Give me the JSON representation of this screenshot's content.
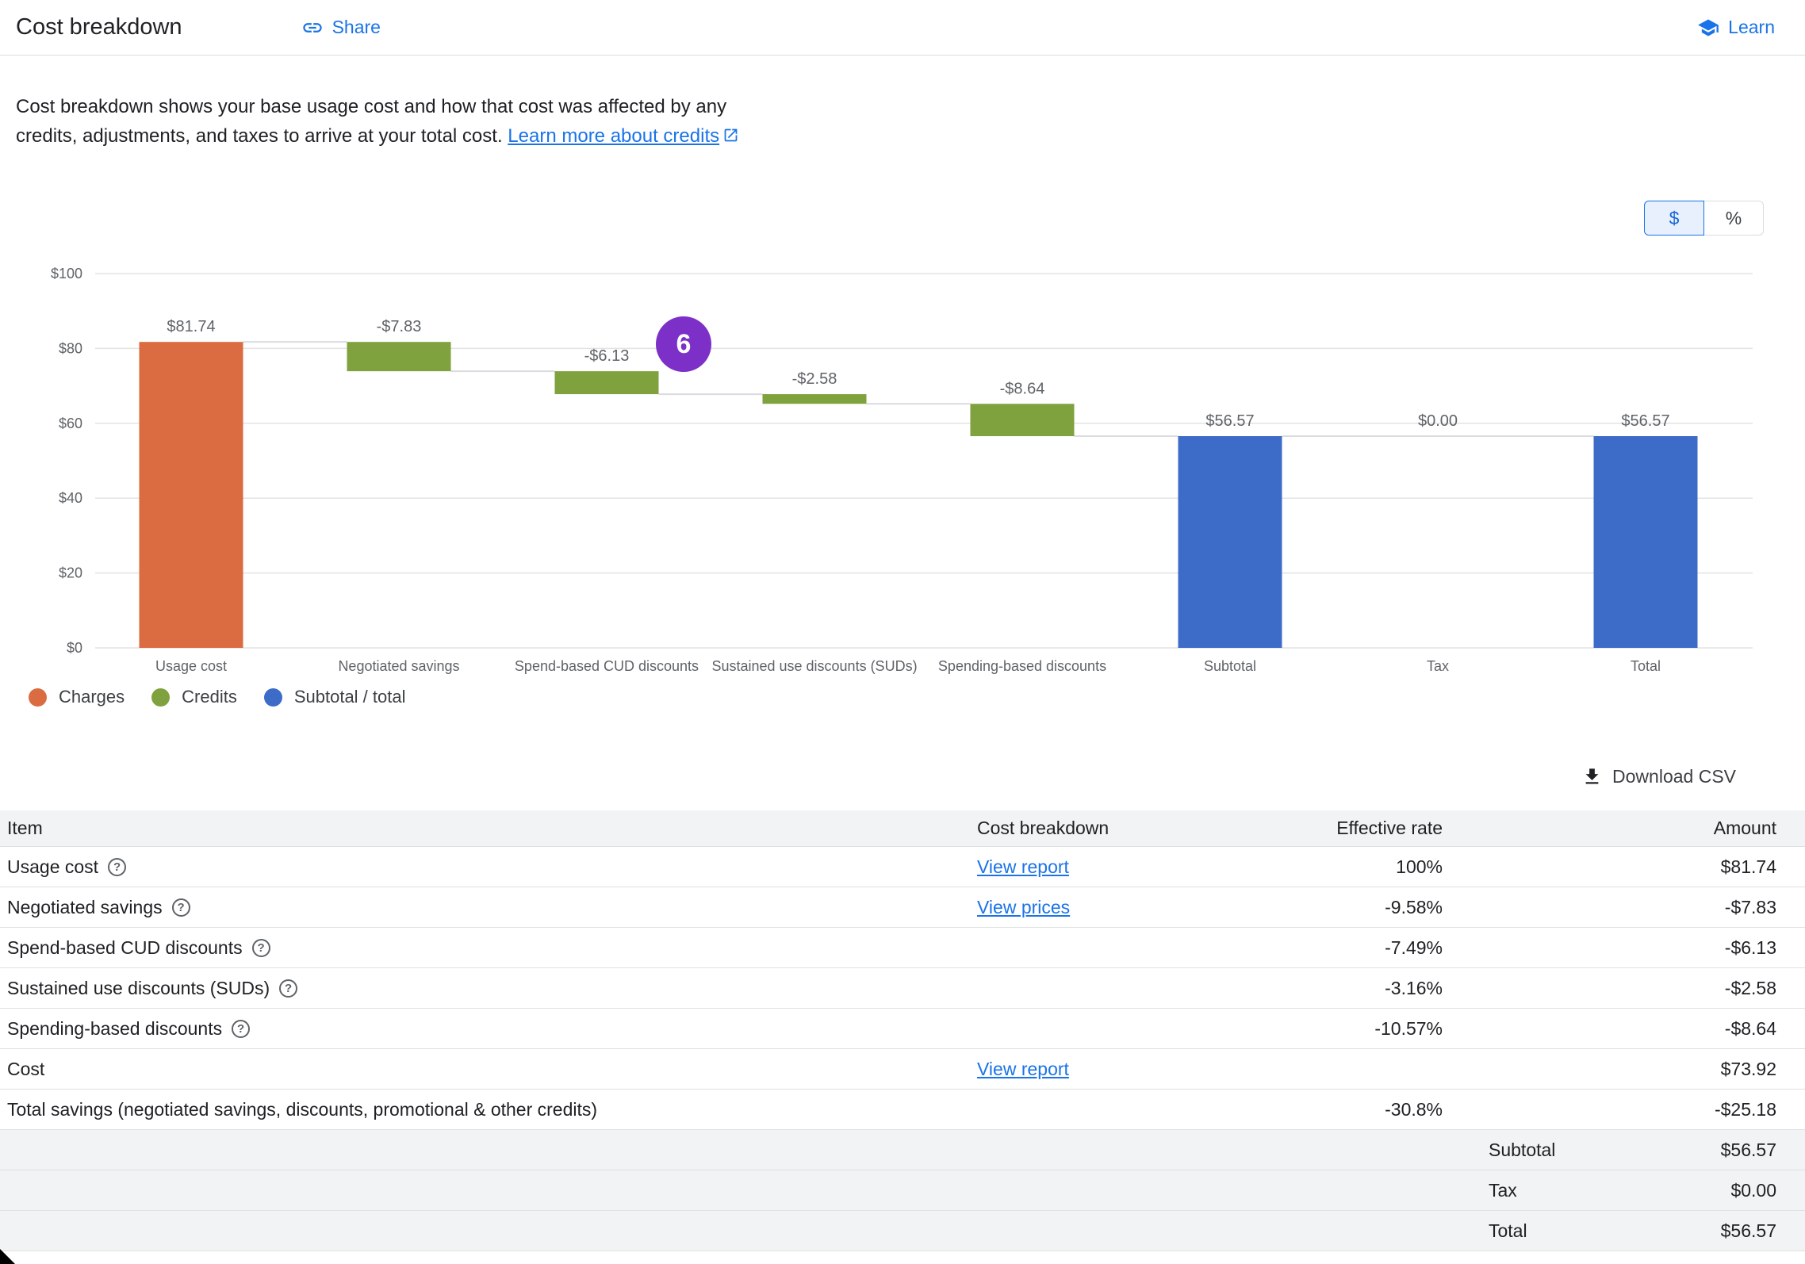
{
  "header": {
    "title": "Cost breakdown",
    "share_label": "Share",
    "learn_label": "Learn"
  },
  "description": {
    "text": "Cost breakdown shows your base usage cost and how that cost was affected by any credits, adjustments, and taxes to arrive at your total cost. ",
    "link_text": "Learn more about credits"
  },
  "unit_toggle": {
    "dollar": "$",
    "percent": "%",
    "selected": "$"
  },
  "step_badge": "6",
  "colors": {
    "link": "#1A73E8",
    "charge": "#DB6B41",
    "credit": "#7FA23E",
    "subtotal_total": "#3D6BC8",
    "badge": "#7C30C7"
  },
  "chart_data": {
    "type": "waterfall",
    "title": "Cost breakdown waterfall",
    "xlabel": "",
    "ylabel": "",
    "ylim": [
      0,
      100
    ],
    "grid": true,
    "yticks": [
      {
        "label": "$0",
        "value": 0
      },
      {
        "label": "$20",
        "value": 20
      },
      {
        "label": "$40",
        "value": 40
      },
      {
        "label": "$60",
        "value": 60
      },
      {
        "label": "$80",
        "value": 80
      },
      {
        "label": "$100",
        "value": 100
      }
    ],
    "bars": [
      {
        "category": "Usage cost",
        "label": "$81.74",
        "start": 0,
        "end": 81.74,
        "type": "charge"
      },
      {
        "category": "Negotiated savings",
        "label": "-$7.83",
        "start": 81.74,
        "end": 73.91,
        "type": "credit"
      },
      {
        "category": "Spend-based CUD discounts",
        "label": "-$6.13",
        "start": 73.91,
        "end": 67.78,
        "type": "credit"
      },
      {
        "category": "Sustained use discounts (SUDs)",
        "label": "-$2.58",
        "start": 67.78,
        "end": 65.2,
        "type": "credit"
      },
      {
        "category": "Spending-based discounts",
        "label": "-$8.64",
        "start": 65.2,
        "end": 56.56,
        "type": "credit"
      },
      {
        "category": "Subtotal",
        "label": "$56.57",
        "start": 0,
        "end": 56.57,
        "type": "subtotal"
      },
      {
        "category": "Tax",
        "label": "$0.00",
        "start": 56.57,
        "end": 56.57,
        "type": "tax"
      },
      {
        "category": "Total",
        "label": "$56.57",
        "start": 0,
        "end": 56.57,
        "type": "total"
      }
    ],
    "legend": [
      {
        "label": "Charges",
        "type": "charge"
      },
      {
        "label": "Credits",
        "type": "credit"
      },
      {
        "label": "Subtotal / total",
        "type": "subtotal_total"
      }
    ],
    "legend_position": "bottom-left"
  },
  "download_csv_label": "Download CSV",
  "table": {
    "columns": [
      "Item",
      "Cost breakdown",
      "Effective rate",
      "Amount"
    ],
    "rows": [
      {
        "item": "Usage cost",
        "help": true,
        "link": "View report",
        "rate": "100%",
        "amount": "$81.74"
      },
      {
        "item": "Negotiated savings",
        "help": true,
        "link": "View prices",
        "rate": "-9.58%",
        "amount": "-$7.83"
      },
      {
        "item": "Spend-based CUD discounts",
        "help": true,
        "link": "",
        "rate": "-7.49%",
        "amount": "-$6.13"
      },
      {
        "item": "Sustained use discounts (SUDs)",
        "help": true,
        "link": "",
        "rate": "-3.16%",
        "amount": "-$2.58"
      },
      {
        "item": "Spending-based discounts",
        "help": true,
        "link": "",
        "rate": "-10.57%",
        "amount": "-$8.64"
      },
      {
        "item": "Cost",
        "help": false,
        "link": "View report",
        "rate": "",
        "amount": "$73.92"
      },
      {
        "item": "Total savings (negotiated savings, discounts, promotional & other credits)",
        "help": false,
        "link": "",
        "rate": "-30.8%",
        "amount": "-$25.18"
      }
    ],
    "summary_rows": [
      {
        "label": "Subtotal",
        "amount": "$56.57"
      },
      {
        "label": "Tax",
        "amount": "$0.00"
      },
      {
        "label": "Total",
        "amount": "$56.57"
      }
    ]
  }
}
